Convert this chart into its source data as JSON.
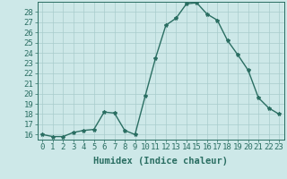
{
  "x": [
    0,
    1,
    2,
    3,
    4,
    5,
    6,
    7,
    8,
    9,
    10,
    11,
    12,
    13,
    14,
    15,
    16,
    17,
    18,
    19,
    20,
    21,
    22,
    23
  ],
  "y": [
    16.0,
    15.8,
    15.8,
    16.2,
    16.4,
    16.5,
    18.2,
    18.1,
    16.4,
    16.0,
    19.8,
    23.5,
    26.7,
    27.4,
    28.8,
    28.9,
    27.8,
    27.2,
    25.2,
    23.8,
    22.3,
    19.6,
    18.6,
    18.0
  ],
  "xlabel": "Humidex (Indice chaleur)",
  "xlim": [
    -0.5,
    23.5
  ],
  "ylim": [
    15.5,
    29.0
  ],
  "yticks": [
    16,
    17,
    18,
    19,
    20,
    21,
    22,
    23,
    24,
    25,
    26,
    27,
    28
  ],
  "xticks": [
    0,
    1,
    2,
    3,
    4,
    5,
    6,
    7,
    8,
    9,
    10,
    11,
    12,
    13,
    14,
    15,
    16,
    17,
    18,
    19,
    20,
    21,
    22,
    23
  ],
  "line_color": "#2a6e62",
  "marker": "*",
  "marker_size": 3,
  "bg_color": "#cde8e8",
  "grid_color": "#a8cccc",
  "tick_label_fontsize": 6.5,
  "xlabel_fontsize": 7.5,
  "line_width": 1.0
}
